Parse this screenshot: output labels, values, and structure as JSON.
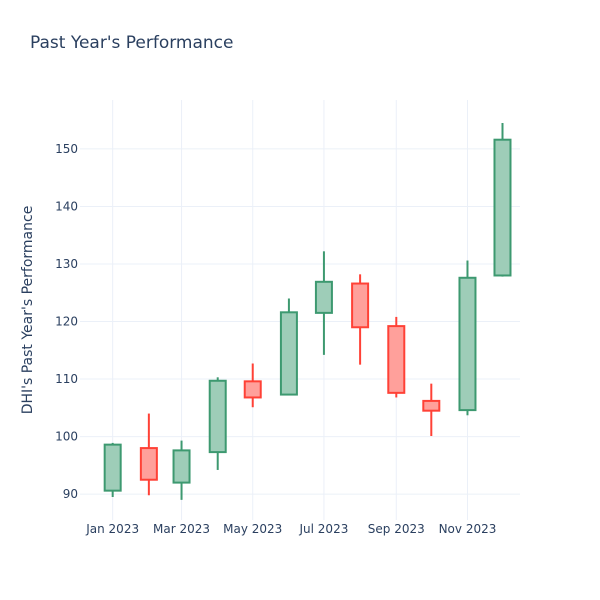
{
  "chart_data": {
    "type": "candlestick",
    "title": "Past Year's Performance",
    "xlabel": "",
    "ylabel": "DHI's Past Year's Performance",
    "ylim": [
      85.5,
      158.5
    ],
    "grid": true,
    "legend": "none",
    "colors": {
      "increasing_line": "#3d9970",
      "increasing_fill": "#9ecdb8",
      "decreasing_line": "#ff4136",
      "decreasing_fill": "#ffa09b",
      "grid": "#ebf0f8",
      "text": "#2a3f5f"
    },
    "x_ticks": [
      {
        "date": "2023-01-01",
        "label": "Jan 2023"
      },
      {
        "date": "2023-03-01",
        "label": "Mar 2023"
      },
      {
        "date": "2023-05-01",
        "label": "May 2023"
      },
      {
        "date": "2023-07-01",
        "label": "Jul 2023"
      },
      {
        "date": "2023-09-01",
        "label": "Sep 2023"
      },
      {
        "date": "2023-11-01",
        "label": "Nov 2023"
      }
    ],
    "y_ticks": [
      90,
      100,
      110,
      120,
      130,
      140,
      150
    ],
    "x_range": [
      "2022-12-04",
      "2023-12-16"
    ],
    "candles": [
      {
        "date": "2023-01-01",
        "open": 90.6,
        "high": 98.9,
        "low": 89.5,
        "close": 98.6
      },
      {
        "date": "2023-02-01",
        "open": 98.0,
        "high": 104.0,
        "low": 89.8,
        "close": 92.5
      },
      {
        "date": "2023-03-01",
        "open": 92.0,
        "high": 99.3,
        "low": 89.0,
        "close": 97.6
      },
      {
        "date": "2023-04-01",
        "open": 97.3,
        "high": 110.3,
        "low": 94.2,
        "close": 109.7
      },
      {
        "date": "2023-05-01",
        "open": 109.6,
        "high": 112.7,
        "low": 105.1,
        "close": 106.8
      },
      {
        "date": "2023-06-01",
        "open": 107.3,
        "high": 124.0,
        "low": 107.3,
        "close": 121.6
      },
      {
        "date": "2023-07-01",
        "open": 121.5,
        "high": 132.2,
        "low": 114.2,
        "close": 126.9
      },
      {
        "date": "2023-08-01",
        "open": 126.6,
        "high": 128.2,
        "low": 112.5,
        "close": 119.0
      },
      {
        "date": "2023-09-01",
        "open": 119.2,
        "high": 120.8,
        "low": 106.8,
        "close": 107.6
      },
      {
        "date": "2023-10-01",
        "open": 106.2,
        "high": 109.2,
        "low": 100.1,
        "close": 104.5
      },
      {
        "date": "2023-11-01",
        "open": 104.6,
        "high": 130.6,
        "low": 103.7,
        "close": 127.6
      },
      {
        "date": "2023-12-01",
        "open": 128.0,
        "high": 154.5,
        "low": 127.8,
        "close": 151.6
      }
    ]
  }
}
